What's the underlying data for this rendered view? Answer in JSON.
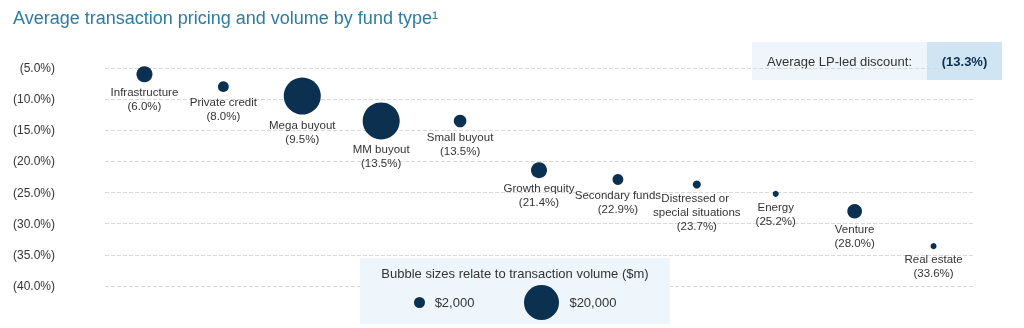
{
  "chart_data": {
    "type": "bubble",
    "title": "Average transaction pricing and volume by fund type¹",
    "categories": [
      "Infrastructure",
      "Private credit",
      "Mega buyout",
      "MM buyout",
      "Small buyout",
      "Growth equity",
      "Secondary funds",
      "Distressed or special situations",
      "Energy",
      "Venture",
      "Real estate"
    ],
    "values": [
      -6.0,
      -8.0,
      -9.5,
      -13.5,
      -13.5,
      -21.4,
      -22.9,
      -23.7,
      -25.2,
      -28.0,
      -33.6
    ],
    "value_labels": [
      "(6.0%)",
      "(8.0%)",
      "(9.5%)",
      "(13.5%)",
      "(13.5%)",
      "(21.4%)",
      "(22.9%)",
      "(23.7%)",
      "(25.2%)",
      "(28.0%)",
      "(33.6%)"
    ],
    "sizes": [
      4200,
      1900,
      22400,
      22400,
      2600,
      4200,
      1900,
      1050,
      600,
      3500,
      590
    ],
    "size_legend": [
      {
        "value": 2000,
        "label": "$2,000"
      },
      {
        "value": 20000,
        "label": "$20,000"
      }
    ],
    "legend_title": "Bubble sizes relate to transaction volume ($m)",
    "color": "#0b3050",
    "ylim": [
      -40,
      -5
    ],
    "yticks": [
      {
        "value": -5,
        "label": "(5.0%)"
      },
      {
        "value": -10,
        "label": "(10.0%)"
      },
      {
        "value": -15,
        "label": "(15.0%)"
      },
      {
        "value": -20,
        "label": "(20.0%)"
      },
      {
        "value": -25,
        "label": "(25.0%)"
      },
      {
        "value": -30,
        "label": "(30.0%)"
      },
      {
        "value": -35,
        "label": "(35.0%)"
      },
      {
        "value": -40,
        "label": "(40.0%)"
      }
    ],
    "grid": "y",
    "tick_labels": "y",
    "annotations": [
      "Average LP-led discount:",
      "(13.3%)"
    ]
  }
}
